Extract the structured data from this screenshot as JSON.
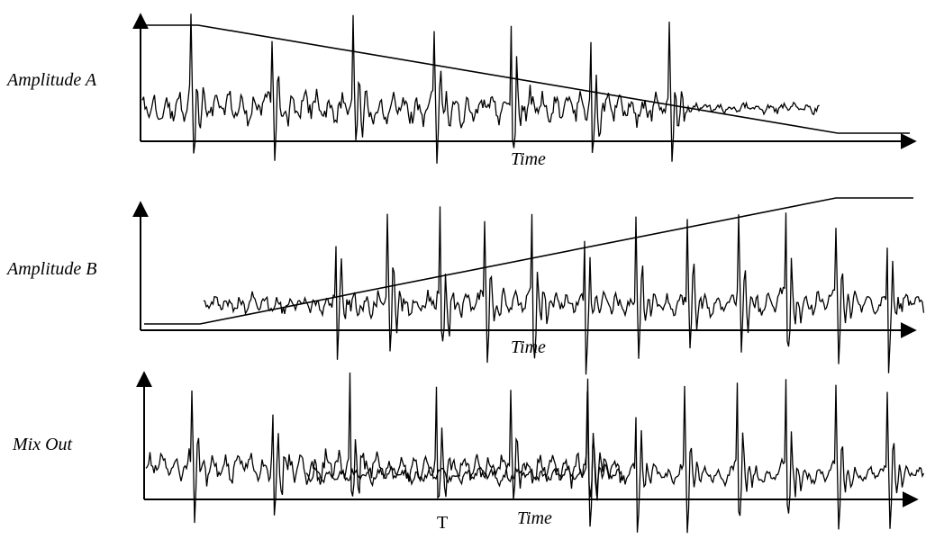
{
  "panels": [
    {
      "label": "Amplitude A",
      "xlabel": "Time",
      "envelope": "fade-out",
      "signal": "noisy then quiet",
      "spike_count": 7
    },
    {
      "label": "Amplitude B",
      "xlabel": "Time",
      "envelope": "fade-in",
      "signal": "delayed start with periodic spikes",
      "spike_count": 11
    },
    {
      "label": "Mix Out",
      "xlabel": "Time",
      "envelope": "none",
      "signal": "sum of A and B",
      "spike_count": 13
    }
  ],
  "marker_label": "T",
  "colors": {
    "ink": "#000000",
    "background": "#ffffff"
  }
}
